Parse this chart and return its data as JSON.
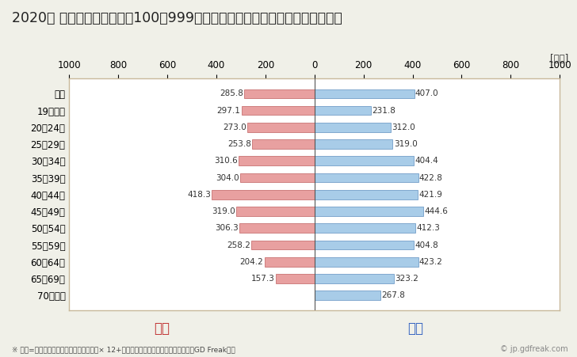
{
  "title": "2020年 民間企業（従業者数100～999人）フルタイム労働者の男女別平均年収",
  "footnote": "※ 年収=「きまって支給する現金給与額」× 12+「年間賞与その他特別給与額」としてGD Freak推計",
  "watermark": "© jp.gdfreak.com",
  "ylabel_unit": "[万円]",
  "categories": [
    "全体",
    "19歳以下",
    "20～24歳",
    "25～29歳",
    "30～34歳",
    "35～39歳",
    "40～44歳",
    "45～49歳",
    "50～54歳",
    "55～59歳",
    "60～64歳",
    "65～69歳",
    "70歳以上"
  ],
  "female_values": [
    285.8,
    297.1,
    273.0,
    253.8,
    310.6,
    304.0,
    418.3,
    319.0,
    306.3,
    258.2,
    204.2,
    157.3,
    0
  ],
  "male_values": [
    407.0,
    231.8,
    312.0,
    319.0,
    404.4,
    422.8,
    421.9,
    444.6,
    412.3,
    404.8,
    423.2,
    323.2,
    267.8
  ],
  "female_color": "#e8a0a0",
  "male_color": "#a8cce8",
  "female_label": "女性",
  "male_label": "男性",
  "female_label_color": "#c03030",
  "male_label_color": "#3060c0",
  "female_edge_color": "#c06060",
  "male_edge_color": "#6090c0",
  "xlim": [
    -1000,
    1000
  ],
  "xticks": [
    -1000,
    -800,
    -600,
    -400,
    -200,
    0,
    200,
    400,
    600,
    800,
    1000
  ],
  "xticklabels": [
    "1000",
    "800",
    "600",
    "400",
    "200",
    "0",
    "200",
    "400",
    "600",
    "800",
    "1000"
  ],
  "bg_color": "#f0f0e8",
  "plot_bg_color": "#ffffff",
  "border_color": "#c8b89a",
  "title_fontsize": 12.5,
  "tick_fontsize": 8.5,
  "value_fontsize": 7.5,
  "legend_fontsize": 12,
  "footnote_fontsize": 6.5,
  "watermark_fontsize": 7.0,
  "unit_fontsize": 8.5,
  "bar_height": 0.55
}
